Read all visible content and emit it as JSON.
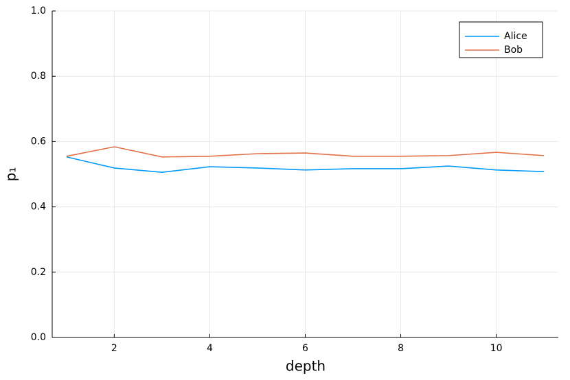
{
  "chart_data": {
    "type": "line",
    "x": [
      1,
      2,
      3,
      4,
      5,
      6,
      7,
      8,
      9,
      10,
      11
    ],
    "series": [
      {
        "name": "Alice",
        "color": "#009af9",
        "values": [
          0.553,
          0.519,
          0.506,
          0.523,
          0.519,
          0.513,
          0.517,
          0.517,
          0.525,
          0.513,
          0.508
        ]
      },
      {
        "name": "Bob",
        "color": "#e26f46",
        "values": [
          0.555,
          0.584,
          0.553,
          0.555,
          0.563,
          0.565,
          0.555,
          0.555,
          0.557,
          0.567,
          0.557
        ]
      }
    ],
    "xlabel": "depth",
    "ylabel": "p₁",
    "xlim": [
      0.7,
      11.3
    ],
    "xticks": [
      2,
      4,
      6,
      8,
      10
    ],
    "ylim": [
      0,
      1
    ],
    "yticks": [
      {
        "value": 0,
        "label": "0.0"
      },
      0.2,
      0.4,
      0.6,
      0.8,
      {
        "value": 1,
        "label": "1.0"
      }
    ],
    "grid": true,
    "legend": "top-right"
  }
}
